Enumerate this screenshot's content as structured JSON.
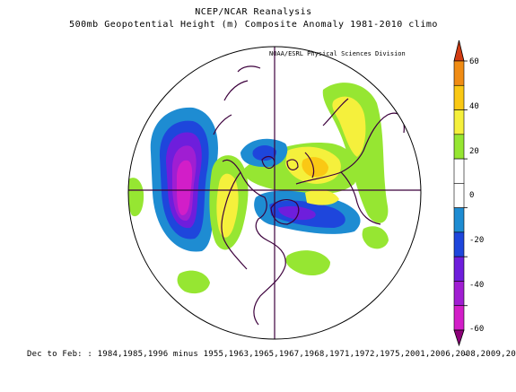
{
  "figure": {
    "title_line1": "NCEP/NCAR Reanalysis",
    "title_line2": "500mb Geopotential Height (m) Composite Anomaly 1981-2010 climo",
    "credit": "NOAA/ESRL Physical Sciences Division",
    "footer": "Dec to Feb: : 1984,1985,1996 minus 1955,1963,1965,1967,1968,1971,1972,1975,2001,2006,2008,2009,20"
  },
  "colorbar": {
    "levels": [
      {
        "label": "60"
      },
      {
        "label": "40"
      },
      {
        "label": "20"
      },
      {
        "label": "0"
      },
      {
        "label": "-20"
      },
      {
        "label": "-40"
      },
      {
        "label": "-60"
      }
    ],
    "bins": [
      {
        "value_range": [
          50,
          60
        ],
        "color": "#d23c12"
      },
      {
        "value_range": [
          40,
          50
        ],
        "color": "#f08c14"
      },
      {
        "value_range": [
          30,
          40
        ],
        "color": "#fac814"
      },
      {
        "value_range": [
          20,
          30
        ],
        "color": "#f5f03c"
      },
      {
        "value_range": [
          10,
          20
        ],
        "color": "#96e632"
      },
      {
        "value_range": [
          0,
          10
        ],
        "color": "#ffffff"
      },
      {
        "value_range": [
          -10,
          0
        ],
        "color": "#ffffff"
      },
      {
        "value_range": [
          -20,
          -10
        ],
        "color": "#1e8cd2"
      },
      {
        "value_range": [
          -30,
          -20
        ],
        "color": "#1e46dc"
      },
      {
        "value_range": [
          -40,
          -30
        ],
        "color": "#6e1edc"
      },
      {
        "value_range": [
          -50,
          -40
        ],
        "color": "#a01ed2"
      },
      {
        "value_range": [
          -60,
          -50
        ],
        "color": "#d21ec8"
      },
      {
        "value_range": [
          -70,
          -60
        ],
        "color": "#8c0078"
      }
    ]
  },
  "map": {
    "projection": "polar stereographic",
    "center": "North Pole",
    "colors": {
      "ocean": "#ffffff",
      "coastline": "#3c003c",
      "gridline": "#3c003c"
    }
  }
}
